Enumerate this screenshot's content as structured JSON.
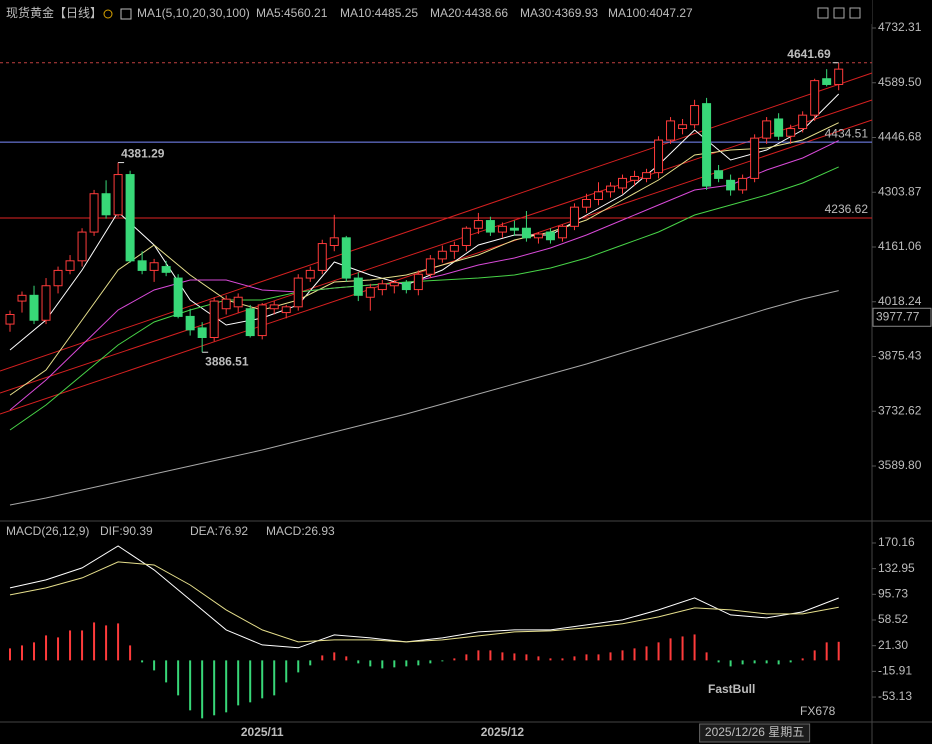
{
  "chart_data": [
    {
      "type": "candlestick",
      "title": "现货黄金【日线】",
      "ma_title": "MA1(5,10,20,30,100)",
      "up_color": "#ff3b3b",
      "down_color": "#38d878",
      "categories": [
        null,
        null,
        null,
        null,
        null,
        null,
        null,
        null,
        null,
        null,
        null,
        null,
        null,
        null,
        null,
        null,
        null,
        null,
        null,
        null,
        null,
        "2025/11",
        null,
        null,
        null,
        null,
        null,
        null,
        null,
        null,
        null,
        null,
        null,
        null,
        null,
        null,
        null,
        null,
        null,
        null,
        null,
        "2025/12",
        null,
        null,
        null,
        null,
        null,
        null,
        null,
        null,
        null,
        null,
        null,
        null,
        null,
        null,
        null,
        null,
        null,
        null,
        null,
        null,
        "2025/12/26 星期五",
        null,
        null,
        null,
        null,
        null,
        null,
        null
      ],
      "candles": {
        "open": [
          3960,
          4020,
          4035,
          3970,
          4060,
          4100,
          4125,
          4200,
          4300,
          4245,
          4350,
          4125,
          4100,
          4110,
          4080,
          3980,
          3950,
          3925,
          4000,
          4005,
          4000,
          3930,
          4000,
          3990,
          4005,
          4080,
          4100,
          4165,
          4185,
          4080,
          4030,
          4050,
          4060,
          4068,
          4050,
          4090,
          4130,
          4150,
          4165,
          4210,
          4230,
          4200,
          4210,
          4210,
          4185,
          4200,
          4185,
          4215,
          4265,
          4285,
          4305,
          4315,
          4335,
          4340,
          4355,
          4440,
          4470,
          4480,
          4535,
          4360,
          4335,
          4310,
          4340,
          4445,
          4495,
          4450,
          4470,
          4505,
          4600,
          4585
        ],
        "high": [
          3995,
          4045,
          4060,
          4080,
          4110,
          4140,
          4210,
          4310,
          4335,
          4381.29,
          4360,
          4150,
          4130,
          4125,
          4090,
          4000,
          3965,
          4030,
          4035,
          4040,
          4010,
          4015,
          4020,
          4010,
          4090,
          4110,
          4180,
          4245,
          4190,
          4095,
          4065,
          4075,
          4075,
          4075,
          4100,
          4140,
          4165,
          4175,
          4215,
          4250,
          4240,
          4225,
          4230,
          4255,
          4200,
          4210,
          4220,
          4275,
          4300,
          4330,
          4330,
          4350,
          4360,
          4365,
          4450,
          4500,
          4495,
          4545,
          4550,
          4375,
          4350,
          4350,
          4455,
          4500,
          4510,
          4480,
          4515,
          4600,
          4625,
          4641.69
        ],
        "low": [
          3940,
          3990,
          3960,
          3960,
          4040,
          4090,
          4110,
          4190,
          4235,
          4240,
          4120,
          4090,
          4070,
          4085,
          3975,
          3930,
          3886.51,
          3915,
          3985,
          3990,
          3925,
          3920,
          3985,
          3975,
          3995,
          4070,
          4090,
          4150,
          4070,
          4020,
          3995,
          4035,
          4040,
          4040,
          4035,
          4080,
          4120,
          4130,
          4150,
          4195,
          4190,
          4185,
          4190,
          4175,
          4170,
          4170,
          4175,
          4205,
          4250,
          4270,
          4290,
          4300,
          4320,
          4330,
          4340,
          4430,
          4455,
          4470,
          4310,
          4330,
          4295,
          4300,
          4330,
          4430,
          4440,
          4430,
          4460,
          4490,
          4580,
          4570
        ],
        "close": [
          3985,
          4035,
          3970,
          4060,
          4100,
          4125,
          4200,
          4300,
          4245,
          4350,
          4125,
          4100,
          4120,
          4095,
          3980,
          3945,
          3925,
          4020,
          4025,
          4030,
          3930,
          4010,
          4010,
          4005,
          4080,
          4100,
          4170,
          4185,
          4080,
          4035,
          4055,
          4065,
          4068,
          4050,
          4090,
          4130,
          4150,
          4165,
          4210,
          4230,
          4200,
          4215,
          4205,
          4185,
          4195,
          4180,
          4215,
          4265,
          4285,
          4305,
          4320,
          4340,
          4345,
          4355,
          4440,
          4490,
          4480,
          4530,
          4320,
          4340,
          4310,
          4340,
          4445,
          4490,
          4450,
          4470,
          4505,
          4595,
          4585,
          4625
        ]
      },
      "series": [
        {
          "name": "MA5:4560.21",
          "color": "#ffffff",
          "x": [
            0,
            3,
            6,
            9,
            12,
            15,
            18,
            21,
            24,
            27,
            30,
            33,
            36,
            39,
            42,
            45,
            48,
            51,
            54,
            57,
            60,
            63,
            66,
            69
          ],
          "values": [
            3892.4,
            3970.6,
            4101.0,
            4252.3,
            4166.3,
            4022.8,
            3957.6,
            3975.8,
            4009.7,
            4121.9,
            4088.0,
            4061.9,
            4101.0,
            4166.3,
            4192.3,
            4192.3,
            4244.5,
            4296.7,
            4375.0,
            4466.2,
            4388.0,
            4414.1,
            4466.2,
            4560.21
          ]
        },
        {
          "name": "MA10:4485.25",
          "color": "#e6df8c",
          "x": [
            0,
            3,
            6,
            9,
            12,
            15,
            18,
            21,
            24,
            27,
            30,
            33,
            36,
            39,
            42,
            45,
            48,
            51,
            54,
            57,
            60,
            63,
            66,
            69
          ],
          "values": [
            3774.8,
            3840.2,
            3970.6,
            4101.0,
            4166.3,
            4088.0,
            4022.8,
            3996.7,
            4022.8,
            4069.8,
            4075.0,
            4088.0,
            4114.1,
            4140.2,
            4179.3,
            4200.2,
            4231.5,
            4283.7,
            4335.8,
            4401.0,
            4414.1,
            4419.3,
            4440.2,
            4485.25
          ]
        },
        {
          "name": "MA20:4438.66",
          "color": "#d84ad8",
          "x": [
            0,
            3,
            6,
            9,
            12,
            15,
            18,
            21,
            24,
            27,
            30,
            33,
            36,
            39,
            42,
            45,
            48,
            51,
            54,
            57,
            60,
            63,
            66,
            69
          ],
          "values": [
            3735.9,
            3814.1,
            3905.4,
            3996.7,
            4048.9,
            4075.0,
            4075.0,
            4048.9,
            4043.7,
            4054.1,
            4061.9,
            4067.2,
            4088.0,
            4114.1,
            4132.3,
            4158.4,
            4192.3,
            4231.5,
            4270.6,
            4309.7,
            4322.8,
            4361.9,
            4393.2,
            4438.66
          ]
        },
        {
          "name": "MA30:4369.93",
          "color": "#48d448",
          "x": [
            0,
            3,
            6,
            9,
            12,
            15,
            18,
            21,
            24,
            27,
            30,
            33,
            36,
            39,
            42,
            45,
            48,
            51,
            54,
            57,
            60,
            63,
            66,
            69
          ],
          "values": [
            3683.7,
            3748.9,
            3827.2,
            3905.4,
            3965.4,
            3996.7,
            4022.8,
            4022.8,
            4043.7,
            4054.1,
            4061.9,
            4069.8,
            4075.0,
            4080.2,
            4088.0,
            4106.3,
            4132.3,
            4166.3,
            4200.2,
            4244.5,
            4270.6,
            4296.7,
            4328.0,
            4369.93
          ]
        },
        {
          "name": "MA100:4047.27",
          "color": "#a8a8a8",
          "x": [
            0,
            3,
            6,
            9,
            12,
            15,
            18,
            21,
            24,
            27,
            30,
            33,
            36,
            39,
            42,
            45,
            48,
            51,
            54,
            57,
            60,
            63,
            66,
            69
          ],
          "values": [
            3488.1,
            3506.3,
            3527.2,
            3548.1,
            3568.9,
            3589.8,
            3610.7,
            3631.5,
            3655.0,
            3678.5,
            3702.0,
            3725.5,
            3751.6,
            3777.7,
            3803.7,
            3829.8,
            3855.9,
            3884.6,
            3913.3,
            3942.0,
            3970.6,
            3999.3,
            4025.4,
            4047.27
          ]
        }
      ],
      "annotations": [
        {
          "index": 9,
          "at": "high",
          "color": "#ff4a4a"
        },
        {
          "index": 16,
          "at": "low",
          "color": "#4ccf7a"
        },
        {
          "index": 69,
          "at": "high",
          "color": "#ff4a4a",
          "dashed": true
        }
      ],
      "hlines": [
        {
          "value": 4434.51,
          "color": "#7d8cff"
        },
        {
          "value": 4236.62,
          "color": "#e02424"
        }
      ],
      "crosshair": {
        "index": 62,
        "y": 3977.77
      },
      "ylim": [
        3448.93,
        4805.35
      ],
      "yticks": [
        4732.31,
        {
          "value": 4589.5,
          "label": "4589.50"
        },
        4446.68,
        4303.87,
        4161.06,
        4018.24,
        3875.43,
        3732.62,
        {
          "value": 3589.8,
          "label": "3589.80"
        }
      ],
      "watermark": "FastBull",
      "watermark2": "FX678"
    },
    {
      "type": "line",
      "title": "MACD(26,12,9)",
      "series": [
        {
          "name": "DIF:90.39",
          "color": "#ffffff",
          "x": [
            0,
            3,
            6,
            9,
            12,
            15,
            18,
            21,
            24,
            27,
            30,
            33,
            36,
            39,
            42,
            45,
            48,
            51,
            54,
            57,
            60,
            63,
            66,
            69
          ],
          "values": [
            105.0,
            116.6,
            134.0,
            165.8,
            131.1,
            87.6,
            44.2,
            22.5,
            18.2,
            37.0,
            32.6,
            26.8,
            32.6,
            41.3,
            44.2,
            44.2,
            51.4,
            58.7,
            73.2,
            90.5,
            65.9,
            61.6,
            70.3,
            90.39
          ]
        },
        {
          "name": "DEA:76.92",
          "color": "#e6df8c",
          "x": [
            0,
            3,
            6,
            9,
            12,
            15,
            18,
            21,
            24,
            27,
            30,
            33,
            36,
            39,
            42,
            45,
            48,
            51,
            54,
            57,
            60,
            63,
            66,
            69
          ],
          "values": [
            94.9,
            105.0,
            119.5,
            142.7,
            138.3,
            109.3,
            73.2,
            44.2,
            26.8,
            29.7,
            29.7,
            26.8,
            29.7,
            35.5,
            41.3,
            42.8,
            47.1,
            53.0,
            63.0,
            76.0,
            73.2,
            67.4,
            67.4,
            76.92
          ]
        }
      ],
      "bars": {
        "name": "MACD:26.93",
        "color": "#d84ad8",
        "up_color": "#ff3b3b",
        "down_color": "#38d878",
        "values": [
          17.4,
          21.7,
          26.1,
          36.2,
          33.3,
          43.4,
          43.4,
          55.0,
          50.7,
          53.6,
          21.7,
          -2.9,
          -14.5,
          -31.9,
          -50.7,
          -72.4,
          -84.0,
          -79.6,
          -75.3,
          -65.2,
          -60.8,
          -55.0,
          -50.7,
          -31.9,
          -17.4,
          -7.2,
          7.2,
          11.6,
          5.8,
          -4.3,
          -8.7,
          -11.6,
          -10.1,
          -8.7,
          -7.2,
          -4.3,
          -1.4,
          2.9,
          8.7,
          14.5,
          14.5,
          11.6,
          10.1,
          8.7,
          5.8,
          2.9,
          2.9,
          5.8,
          8.7,
          8.7,
          11.6,
          14.5,
          17.4,
          20.3,
          26.1,
          31.9,
          34.7,
          37.6,
          11.6,
          -2.9,
          -8.7,
          -5.8,
          -4.3,
          -4.3,
          -5.8,
          -2.9,
          2.9,
          14.5,
          26.1,
          26.93
        ]
      },
      "ylim": [
        -86.4,
        200.56
      ],
      "yticks": [
        170.16,
        132.95,
        95.73,
        58.52,
        {
          "value": 21.3,
          "label": "21.30"
        },
        -15.91,
        -53.13
      ]
    }
  ]
}
